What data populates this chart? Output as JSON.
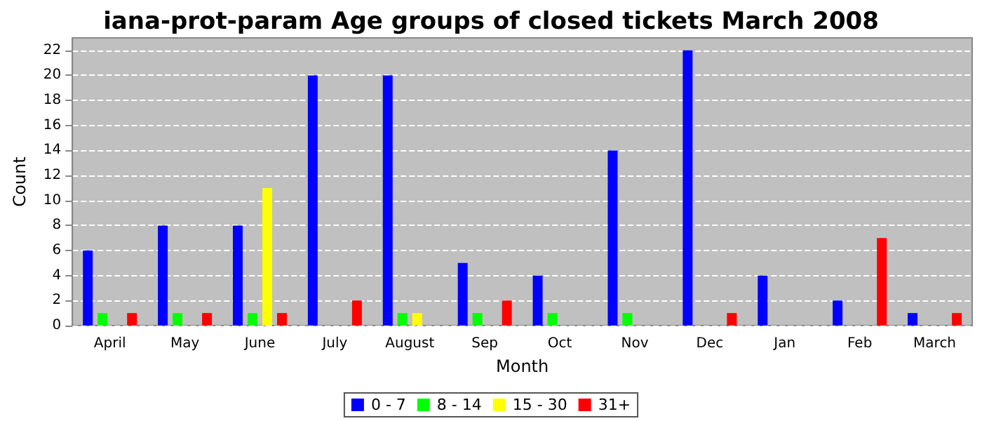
{
  "chart_data": {
    "type": "bar",
    "title": "iana-prot-param Age groups of closed tickets March 2008",
    "xlabel": "Month",
    "ylabel": "Count",
    "categories": [
      "April",
      "May",
      "June",
      "July",
      "August",
      "Sep",
      "Oct",
      "Nov",
      "Dec",
      "Jan",
      "Feb",
      "March"
    ],
    "series": [
      {
        "name": "0 - 7",
        "color": "#0000ff",
        "values": [
          6,
          8,
          8,
          20,
          20,
          5,
          4,
          14,
          22,
          4,
          2,
          1
        ]
      },
      {
        "name": "8 - 14",
        "color": "#00ff00",
        "values": [
          1,
          1,
          1,
          0,
          1,
          1,
          1,
          1,
          0,
          0,
          0,
          0
        ]
      },
      {
        "name": "15 - 30",
        "color": "#ffff00",
        "values": [
          0,
          0,
          11,
          0,
          1,
          0,
          0,
          0,
          0,
          0,
          0,
          0
        ]
      },
      {
        "name": "31+",
        "color": "#ff0000",
        "values": [
          1,
          1,
          1,
          2,
          0,
          2,
          0,
          0,
          1,
          0,
          7,
          1
        ]
      }
    ],
    "ylim": [
      0,
      23
    ],
    "yticks": [
      0,
      2,
      4,
      6,
      8,
      10,
      12,
      14,
      16,
      18,
      20,
      22
    ],
    "grid": "y",
    "legend": "bottom"
  }
}
